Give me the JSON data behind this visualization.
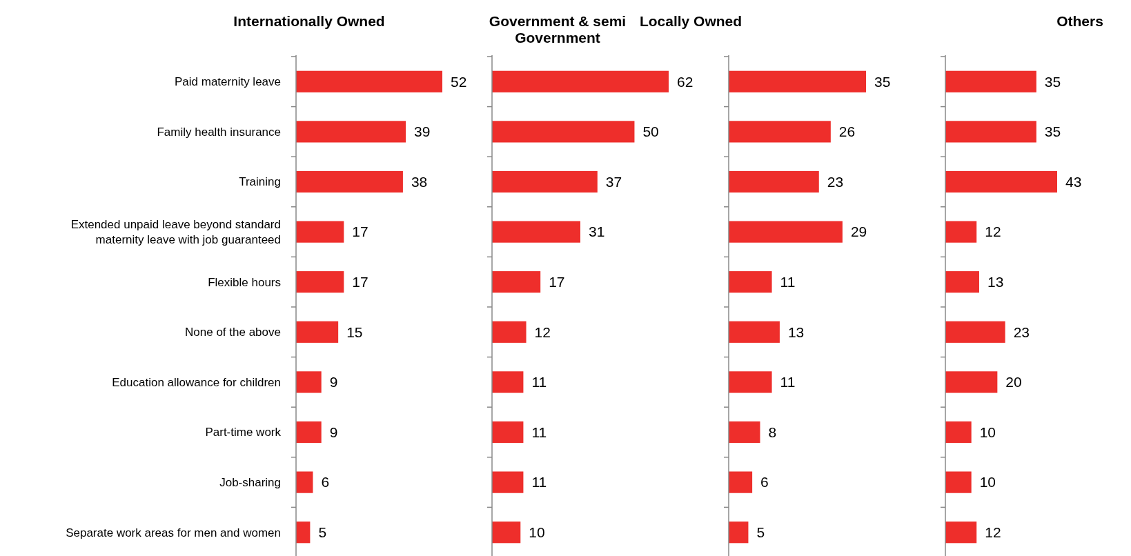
{
  "chart_data": [
    {
      "type": "bar",
      "orientation": "horizontal",
      "title": "Internationally Owned",
      "categories": [
        "Paid maternity leave",
        "Family health insurance",
        "Training",
        "Extended unpaid leave beyond standard maternity leave with job guaranteed",
        "Flexible hours",
        "None of the above",
        "Education allowance for children",
        "Part-time work",
        "Job-sharing",
        "Separate work areas for men and women"
      ],
      "values": [
        52,
        39,
        38,
        17,
        17,
        15,
        9,
        9,
        6,
        5
      ],
      "color": "#ee2e2b",
      "data_labels": true,
      "tick_labels": "y"
    },
    {
      "type": "bar",
      "orientation": "horizontal",
      "title": "Government & semi Government",
      "values": [
        62,
        50,
        37,
        31,
        17,
        12,
        11,
        11,
        11,
        10
      ],
      "color": "#ee2e2b",
      "data_labels": true,
      "tick_labels": false
    },
    {
      "type": "bar",
      "orientation": "horizontal",
      "title": "Locally Owned",
      "values": [
        35,
        26,
        23,
        29,
        11,
        13,
        11,
        8,
        6,
        5
      ],
      "color": "#ee2e2b",
      "data_labels": true,
      "tick_labels": false
    },
    {
      "type": "bar",
      "orientation": "horizontal",
      "title": "Others",
      "values": [
        35,
        35,
        43,
        12,
        13,
        23,
        20,
        10,
        10,
        12
      ],
      "color": "#ee2e2b",
      "data_labels": true,
      "tick_labels": false
    }
  ]
}
